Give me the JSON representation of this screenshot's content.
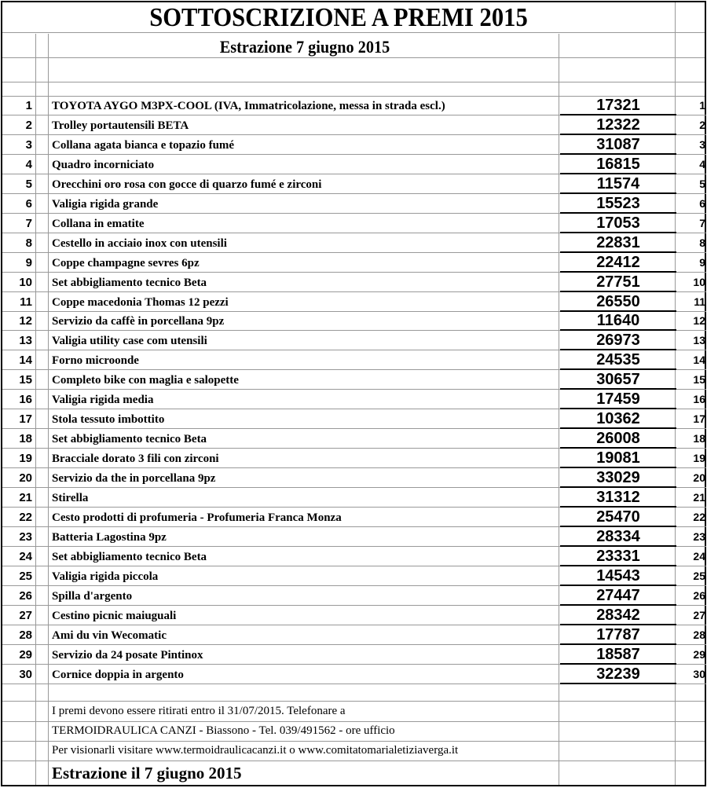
{
  "title": "SOTTOSCRIZIONE A PREMI 2015",
  "subtitle": "Estrazione 7 giugno 2015",
  "prizes": [
    {
      "n": "1",
      "item": "TOYOTA AYGO M3PX-COOL (IVA, Immatricolazione, messa in strada escl.)",
      "ticket": "17321"
    },
    {
      "n": "2",
      "item": "Trolley portautensili BETA",
      "ticket": "12322"
    },
    {
      "n": "3",
      "item": "Collana agata bianca e topazio fumé",
      "ticket": "31087"
    },
    {
      "n": "4",
      "item": "Quadro incorniciato",
      "ticket": "16815"
    },
    {
      "n": "5",
      "item": "Orecchini oro rosa con gocce di quarzo fumé e zirconi",
      "ticket": "11574"
    },
    {
      "n": "6",
      "item": "Valigia rigida grande",
      "ticket": "15523"
    },
    {
      "n": "7",
      "item": "Collana in ematite",
      "ticket": "17053"
    },
    {
      "n": "8",
      "item": "Cestello in acciaio inox con utensili",
      "ticket": "22831"
    },
    {
      "n": "9",
      "item": "Coppe champagne sevres 6pz",
      "ticket": "22412"
    },
    {
      "n": "10",
      "item": "Set abbigliamento tecnico Beta",
      "ticket": "27751"
    },
    {
      "n": "11",
      "item": "Coppe macedonia Thomas 12 pezzi",
      "ticket": "26550"
    },
    {
      "n": "12",
      "item": "Servizio da caffè in porcellana 9pz",
      "ticket": "11640"
    },
    {
      "n": "13",
      "item": "Valigia utility case com utensili",
      "ticket": "26973"
    },
    {
      "n": "14",
      "item": "Forno microonde",
      "ticket": "24535"
    },
    {
      "n": "15",
      "item": "Completo bike con maglia e salopette",
      "ticket": "30657"
    },
    {
      "n": "16",
      "item": "Valigia rigida media",
      "ticket": "17459"
    },
    {
      "n": "17",
      "item": "Stola tessuto imbottito",
      "ticket": "10362"
    },
    {
      "n": "18",
      "item": "Set abbigliamento tecnico Beta",
      "ticket": "26008"
    },
    {
      "n": "19",
      "item": "Bracciale dorato 3 fili con zirconi",
      "ticket": "19081"
    },
    {
      "n": "20",
      "item": "Servizio da the in porcellana 9pz",
      "ticket": "33029"
    },
    {
      "n": "21",
      "item": "Stirella",
      "ticket": "31312"
    },
    {
      "n": "22",
      "item": "Cesto prodotti di profumeria - Profumeria Franca Monza",
      "ticket": "25470"
    },
    {
      "n": "23",
      "item": "Batteria Lagostina 9pz",
      "ticket": "28334"
    },
    {
      "n": "24",
      "item": "Set abbigliamento tecnico Beta",
      "ticket": "23331"
    },
    {
      "n": "25",
      "item": "Valigia rigida piccola",
      "ticket": "14543"
    },
    {
      "n": "26",
      "item": "Spilla d'argento",
      "ticket": "27447"
    },
    {
      "n": "27",
      "item": "Cestino picnic maiuguali",
      "ticket": "28342"
    },
    {
      "n": "28",
      "item": "Ami du vin Wecomatic",
      "ticket": "17787"
    },
    {
      "n": "29",
      "item": "Servizio da 24 posate Pintinox",
      "ticket": "18587"
    },
    {
      "n": "30",
      "item": "Cornice doppia in argento",
      "ticket": "32239"
    }
  ],
  "footer": {
    "line1": "I premi devono essere ritirati entro il 31/07/2015. Telefonare a",
    "line2": "TERMOIDRAULICA CANZI - Biassono - Tel. 039/491562 - ore ufficio",
    "line3": "Per visionarli visitare www.termoidraulicacanzi.it o www.comitatomarialetiziaverga.it",
    "line4": "Estrazione il 7 giugno 2015"
  }
}
